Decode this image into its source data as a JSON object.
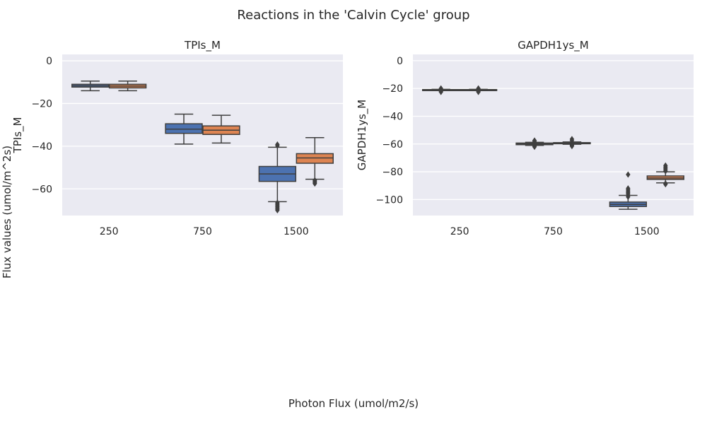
{
  "figure": {
    "title": "Reactions in the 'Calvin Cycle' group",
    "ylabel": "Flux values (umol/m^2s)",
    "xlabel": "Photon Flux (umol/m2/s)"
  },
  "colors": {
    "background": "#ffffff",
    "panel": "#eaeaf2",
    "grid": "#ffffff",
    "series_1": "#4c72b0",
    "series_2": "#dd8452",
    "line": "#3f3f3f"
  },
  "chart_data": [
    {
      "type": "box",
      "title": "TPIs_M",
      "xlabel": "",
      "ylabel": "TPIs_M",
      "categories": [
        "250",
        "750",
        "1500"
      ],
      "ylim": [
        -72.5,
        3.0
      ],
      "yticks": [
        0,
        -20,
        -40,
        -60
      ],
      "ytick_labels": [
        "0",
        "−20",
        "−40",
        "−60"
      ],
      "grid": true,
      "series": [
        {
          "boxes": [
            {
              "whislo": -14,
              "q1": -12.3,
              "med": -11.7,
              "q3": -11,
              "whishi": -9.5,
              "fliers": []
            },
            {
              "whislo": -39,
              "q1": -34,
              "med": -32,
              "q3": -29.5,
              "whishi": -25,
              "fliers": []
            },
            {
              "whislo": -66,
              "q1": -56.5,
              "med": -53,
              "q3": -49.5,
              "whishi": -40.5,
              "fliers": [
                -39.2,
                -39.8,
                -66.5,
                -67,
                -67.5,
                -68,
                -68.5,
                -69,
                -69.5,
                -70
              ]
            }
          ]
        },
        {
          "boxes": [
            {
              "whislo": -14,
              "q1": -12.7,
              "med": -11.8,
              "q3": -11,
              "whishi": -9.5,
              "fliers": []
            },
            {
              "whislo": -38.5,
              "q1": -34.5,
              "med": -32.5,
              "q3": -30.5,
              "whishi": -25.5,
              "fliers": []
            },
            {
              "whislo": -55.5,
              "q1": -48,
              "med": -45.5,
              "q3": -43.5,
              "whishi": -36,
              "fliers": [
                -56,
                -56.5,
                -57,
                -57.5
              ]
            }
          ]
        }
      ]
    },
    {
      "type": "box",
      "title": "GAPDH1ys_M",
      "xlabel": "",
      "ylabel": "GAPDH1ys_M",
      "categories": [
        "250",
        "750",
        "1500"
      ],
      "ylim": [
        -111.5,
        4.5
      ],
      "yticks": [
        0,
        -20,
        -40,
        -60,
        -80,
        -100
      ],
      "ytick_labels": [
        "0",
        "−20",
        "−40",
        "−60",
        "−80",
        "−100"
      ],
      "grid": true,
      "series": [
        {
          "boxes": [
            {
              "whislo": -21.5,
              "q1": -21.3,
              "med": -21,
              "q3": -20.8,
              "whishi": -20.6,
              "fliers": [
                -20,
                -20.5,
                -21.5,
                -22,
                -22.5
              ]
            },
            {
              "whislo": -61,
              "q1": -60.5,
              "med": -60,
              "q3": -59.3,
              "whishi": -58.8,
              "fliers": [
                -57.5,
                -58,
                -61.5,
                -62
              ]
            },
            {
              "whislo": -107,
              "q1": -105,
              "med": -103.5,
              "q3": -101.8,
              "whishi": -97,
              "fliers": [
                -82,
                -92,
                -93,
                -94,
                -95,
                -96,
                -98
              ]
            }
          ]
        },
        {
          "boxes": [
            {
              "whislo": -21.5,
              "q1": -21.3,
              "med": -21,
              "q3": -20.8,
              "whishi": -20.6,
              "fliers": [
                -20,
                -20.5,
                -21.5,
                -22,
                -22.5
              ]
            },
            {
              "whislo": -60.2,
              "q1": -59.8,
              "med": -59.3,
              "q3": -59,
              "whishi": -58.5,
              "fliers": [
                -56.5,
                -57.5,
                -60.5,
                -61,
                -61.5
              ]
            },
            {
              "whislo": -88,
              "q1": -85.5,
              "med": -84.5,
              "q3": -83,
              "whishi": -80,
              "fliers": [
                -75.5,
                -76.5,
                -77.5,
                -78.5,
                -79.5,
                -88.5,
                -89
              ]
            }
          ]
        }
      ]
    }
  ]
}
